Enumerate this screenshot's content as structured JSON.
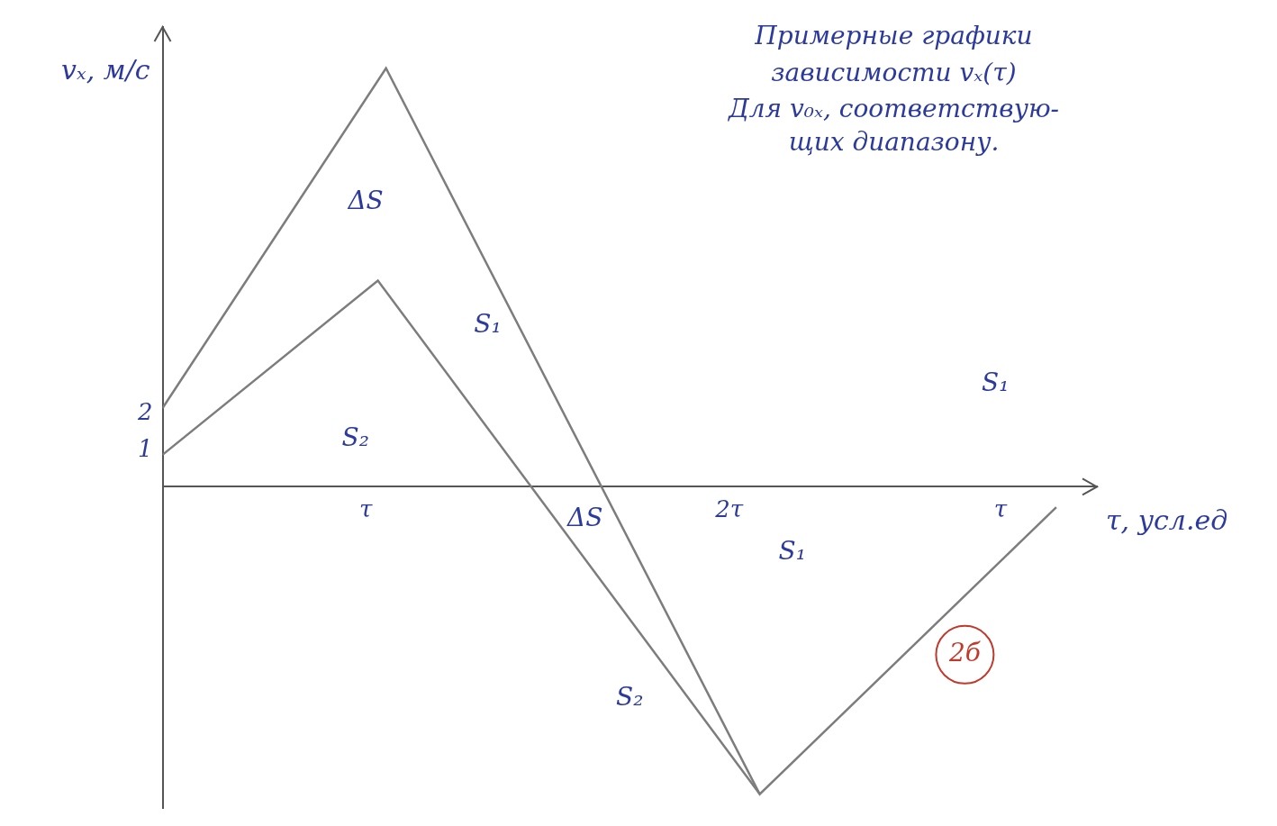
{
  "chart_data": {
    "type": "line",
    "x_label": "τ, усл.ед",
    "y_label": "vₓ, м/с",
    "xlim": [
      0,
      4.6
    ],
    "ylim": [
      -8.8,
      12.6
    ],
    "xticks": [
      {
        "value": 1,
        "label": "τ"
      },
      {
        "value": 2.79,
        "label": "2τ"
      },
      {
        "value": 4.125,
        "label": "τ"
      }
    ],
    "yticks": [
      1,
      2
    ],
    "grid": false,
    "series": [
      {
        "color": "#7d7d7d",
        "x": [
          0,
          1.1,
          2.94,
          4.4
        ],
        "values": [
          2.16,
          11.47,
          -8.42,
          -0.56
        ]
      },
      {
        "color": "#7d7d7d",
        "x": [
          0,
          1.06,
          2.94
        ],
        "values": [
          0.88,
          5.65,
          -8.42
        ]
      }
    ],
    "annotations": [
      {
        "text": "Примерные графики",
        "x": 3.6,
        "y": 12.3,
        "color": "#2b3a9c"
      },
      {
        "text": "зависимости vₓ(τ)",
        "x": 3.6,
        "y": 11.3,
        "color": "#2b3a9c"
      },
      {
        "text": "Для v₀ₓ, соответствую-",
        "x": 3.6,
        "y": 10.3,
        "color": "#2b3a9c"
      },
      {
        "text": "щих диапазону.",
        "x": 3.6,
        "y": 9.4,
        "color": "#2b3a9c"
      },
      {
        "text": "ΔS",
        "x": 1.0,
        "y": 7.8,
        "color": "#2b3a9c"
      },
      {
        "text": "S₁",
        "x": 1.6,
        "y": 4.4,
        "color": "#2b3a9c"
      },
      {
        "text": "S₂",
        "x": 0.95,
        "y": 1.3,
        "color": "#2b3a9c"
      },
      {
        "text": "ΔS",
        "x": 2.08,
        "y": -0.9,
        "color": "#2b3a9c"
      },
      {
        "text": "S₁",
        "x": 3.1,
        "y": -1.8,
        "color": "#2b3a9c"
      },
      {
        "text": "S₂",
        "x": 2.3,
        "y": -5.8,
        "color": "#2b3a9c"
      },
      {
        "text": "S₁",
        "x": 4.1,
        "y": 2.8,
        "color": "#2b3a9c"
      },
      {
        "text": "2б",
        "x": 3.95,
        "y": -4.6,
        "color": "#c0392b",
        "marker": "circle"
      }
    ]
  }
}
